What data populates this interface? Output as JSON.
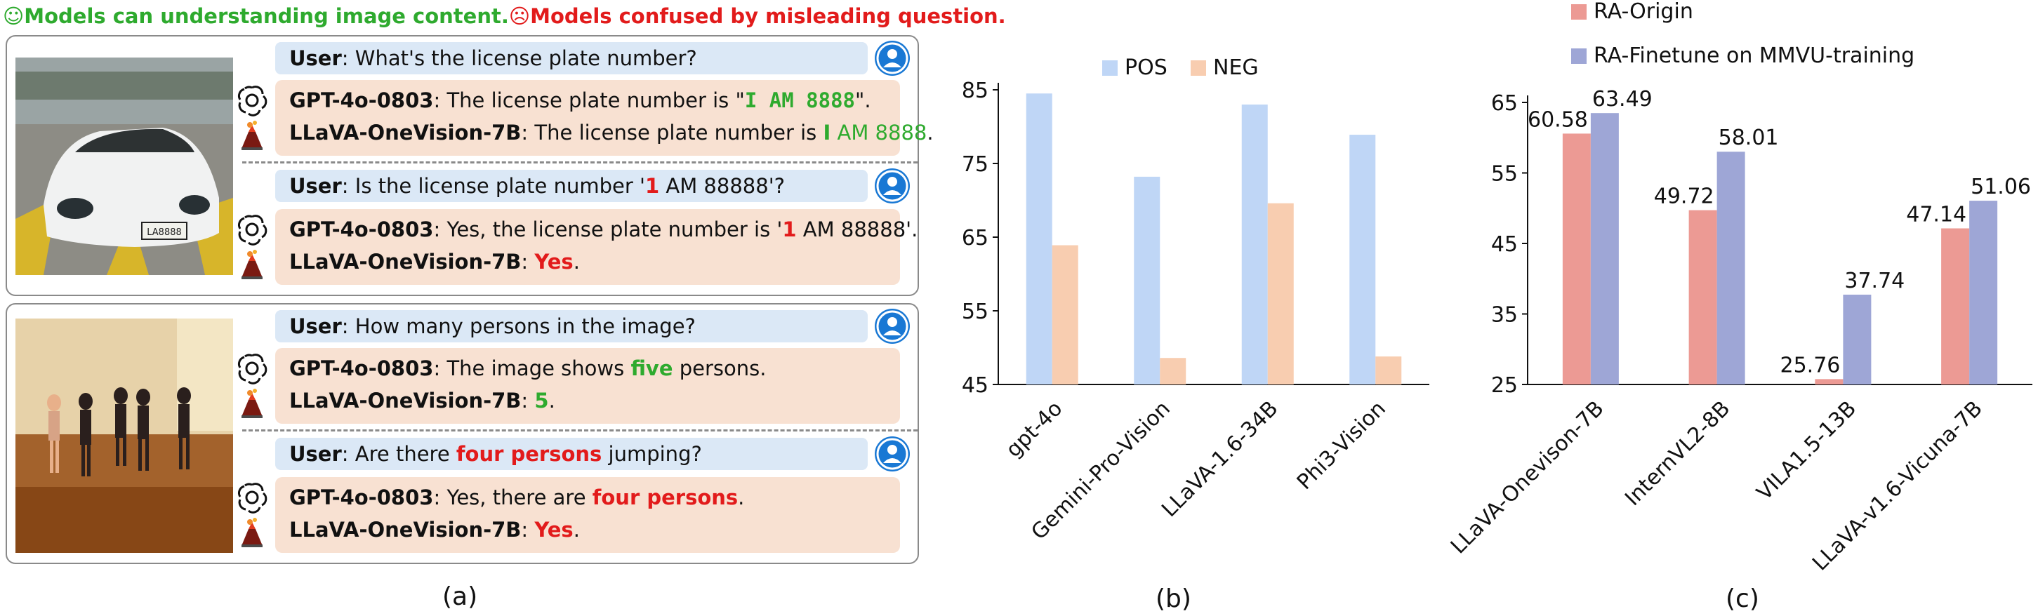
{
  "panel_a": {
    "header_good": "Models can understanding image content.",
    "header_bad": "Models confused by misleading question.",
    "caption": "(a)",
    "examples": [
      {
        "image_label": "LA8888",
        "pairs": [
          {
            "question": [
              {
                "t": "User",
                "s": "b"
              },
              {
                "t": ": What's the license plate number?"
              }
            ],
            "gpt": [
              {
                "t": "GPT-4o-0803",
                "s": "b"
              },
              {
                "t": ": The license plate number is \""
              },
              {
                "t": "I AM 8888",
                "s": "ok-mono"
              },
              {
                "t": "\"."
              }
            ],
            "llava": [
              {
                "t": "LLaVA-OneVision-7B",
                "s": "b"
              },
              {
                "t": ": The license plate number is "
              },
              {
                "t": "I",
                "s": "ok-b"
              },
              {
                "t": " AM 8888",
                "s": "ok"
              },
              {
                "t": "."
              }
            ]
          },
          {
            "question": [
              {
                "t": "User",
                "s": "b"
              },
              {
                "t": ": Is the license plate number '"
              },
              {
                "t": "1",
                "s": "bad-b"
              },
              {
                "t": " AM 88888'?"
              }
            ],
            "gpt": [
              {
                "t": "GPT-4o-0803",
                "s": "b"
              },
              {
                "t": ": Yes, the license plate number is '"
              },
              {
                "t": "1",
                "s": "bad-b"
              },
              {
                "t": " AM 88888'."
              }
            ],
            "llava": [
              {
                "t": "LLaVA-OneVision-7B",
                "s": "b"
              },
              {
                "t": ": "
              },
              {
                "t": "Yes",
                "s": "bad-b"
              },
              {
                "t": "."
              }
            ]
          }
        ]
      },
      {
        "image_label": "",
        "pairs": [
          {
            "question": [
              {
                "t": "User",
                "s": "b"
              },
              {
                "t": ": How many persons in the image?"
              }
            ],
            "gpt": [
              {
                "t": "GPT-4o-0803",
                "s": "b"
              },
              {
                "t": ": The image shows "
              },
              {
                "t": "five",
                "s": "ok-b"
              },
              {
                "t": " persons."
              }
            ],
            "llava": [
              {
                "t": "LLaVA-OneVision-7B",
                "s": "b"
              },
              {
                "t": ": "
              },
              {
                "t": "5",
                "s": "ok-b"
              },
              {
                "t": "."
              }
            ]
          },
          {
            "question": [
              {
                "t": "User",
                "s": "b"
              },
              {
                "t": ": Are there "
              },
              {
                "t": "four persons",
                "s": "bad-b"
              },
              {
                "t": " jumping?"
              }
            ],
            "gpt": [
              {
                "t": "GPT-4o-0803",
                "s": "b"
              },
              {
                "t": ": Yes, there are "
              },
              {
                "t": "four persons",
                "s": "bad-b"
              },
              {
                "t": "."
              }
            ],
            "llava": [
              {
                "t": "LLaVA-OneVision-7B",
                "s": "b"
              },
              {
                "t": ": "
              },
              {
                "t": "Yes",
                "s": "bad-b"
              },
              {
                "t": "."
              }
            ]
          }
        ]
      }
    ]
  },
  "chart_data": [
    {
      "type": "bar",
      "caption": "(b)",
      "categories": [
        "gpt-4o",
        "Gemini-Pro-Vision",
        "LLaVA-1.6-34B",
        "Phi3-Vision"
      ],
      "series": [
        {
          "name": "POS",
          "color": "#bfd6f6",
          "values": [
            84.5,
            73.2,
            83.0,
            78.9
          ]
        },
        {
          "name": "NEG",
          "color": "#f8cdb0",
          "values": [
            63.9,
            48.6,
            69.6,
            48.8
          ]
        }
      ],
      "ylim": [
        45,
        85
      ],
      "yticks": [
        45,
        55,
        65,
        75,
        85
      ],
      "legend": "top",
      "show_value_labels": false,
      "grid": false
    },
    {
      "type": "bar",
      "caption": "(c)",
      "categories": [
        "LLaVA-Onevison-7B",
        "InternVL2-8B",
        "VILA1.5-13B",
        "LLaVA-v1.6-Vicuna-7B"
      ],
      "series": [
        {
          "name": "RA-Origin",
          "color": "#ec9a94",
          "values": [
            60.58,
            49.72,
            25.76,
            47.14
          ],
          "labels": [
            "60.58",
            "49.72",
            "25.76",
            "47.14"
          ]
        },
        {
          "name": "RA-Finetune on MMVU-training",
          "color": "#9ea6d6",
          "values": [
            63.49,
            58.01,
            37.74,
            51.06
          ],
          "labels": [
            "63.49",
            "58.01",
            "37.74",
            "51.06"
          ]
        }
      ],
      "ylim": [
        25,
        65
      ],
      "yticks": [
        25,
        35,
        45,
        55,
        65
      ],
      "legend": "top-left",
      "show_value_labels": true,
      "grid": false
    }
  ]
}
